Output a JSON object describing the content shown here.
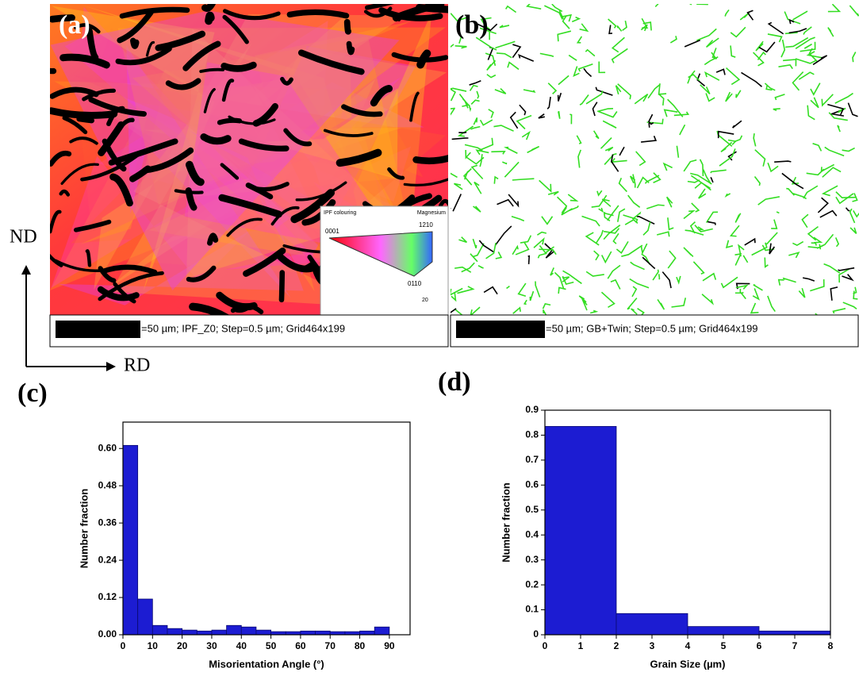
{
  "panels": {
    "a": {
      "label": "(a)",
      "caption": "=50 µm; IPF_Z0; Step=0.5 µm; Grid464x199",
      "legend": {
        "title": "IPF colouring",
        "phase": "Magnesium",
        "corner_1": "0001",
        "corner_2": "1210",
        "corner_3": "0110",
        "note": "20"
      }
    },
    "b": {
      "label": "(b)",
      "caption": "=50 µm; GB+Twin; Step=0.5 µm; Grid464x199"
    },
    "axes": {
      "nd": "ND",
      "rd": "RD"
    },
    "c": {
      "label": "(c)"
    },
    "d": {
      "label": "(d)"
    }
  },
  "chart_data": [
    {
      "type": "histogram",
      "xlabel": "Misorientation Angle (°)",
      "ylabel": "Number fraction",
      "color": "#1c1cd2",
      "bins": [
        0,
        5,
        10,
        15,
        20,
        25,
        30,
        35,
        40,
        45,
        50,
        55,
        60,
        65,
        70,
        75,
        80,
        85,
        90
      ],
      "values": [
        0.61,
        0.115,
        0.03,
        0.02,
        0.015,
        0.012,
        0.015,
        0.03,
        0.025,
        0.015,
        0.01,
        0.01,
        0.012,
        0.012,
        0.01,
        0.01,
        0.012,
        0.025
      ],
      "xlim": [
        0,
        97
      ],
      "ylim": [
        0,
        0.685
      ],
      "xticks": [
        0,
        10,
        20,
        30,
        40,
        50,
        60,
        70,
        80,
        90
      ],
      "yticks": [
        {
          "value": 0,
          "label": "0.00"
        },
        {
          "value": 0.12,
          "label": "0.12"
        },
        {
          "value": 0.24,
          "label": "0.24"
        },
        {
          "value": 0.36,
          "label": "0.36"
        },
        {
          "value": 0.48,
          "label": "0.48"
        },
        {
          "value": 0.6,
          "label": "0.60"
        }
      ]
    },
    {
      "type": "histogram",
      "xlabel": "Grain Size (µm)",
      "ylabel": "Number fraction",
      "color": "#1c1cd2",
      "bins": [
        0,
        2,
        4,
        6,
        8
      ],
      "values": [
        0.835,
        0.085,
        0.033,
        0.015
      ],
      "xlim": [
        0,
        8
      ],
      "ylim": [
        0,
        0.9
      ],
      "xticks": [
        0,
        1,
        2,
        3,
        4,
        5,
        6,
        7,
        8
      ],
      "yticks": [
        0,
        0.1,
        0.2,
        0.3,
        0.4,
        0.5,
        0.6,
        0.7,
        0.8,
        0.9
      ]
    }
  ]
}
